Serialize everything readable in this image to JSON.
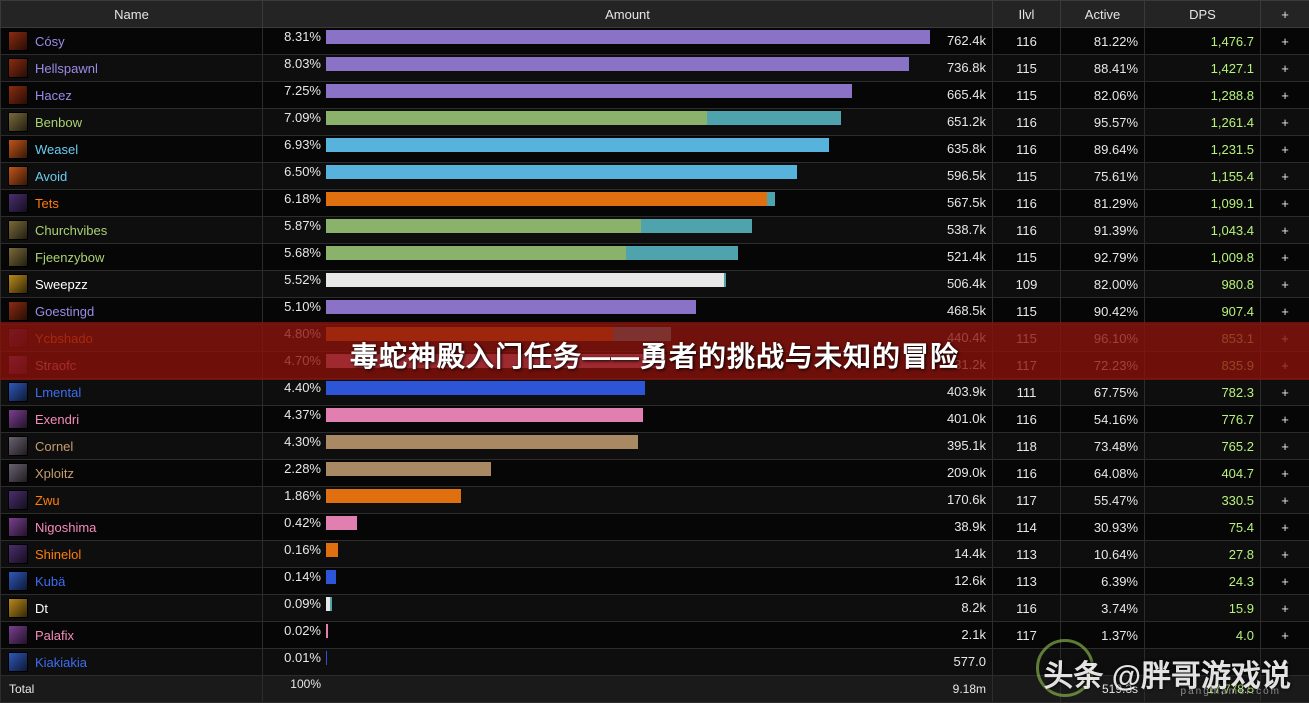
{
  "columns": {
    "name": "Name",
    "amount": "Amount",
    "ilvl": "Ilvl",
    "active": "Active",
    "dps": "DPS",
    "plus": "+"
  },
  "rows": [
    {
      "name": "Cósy",
      "color": "#9d8ae8",
      "icon": "warlock-icon",
      "pct": "8.31%",
      "amount": "762.4k",
      "ilvl": "116",
      "active": "81.22%",
      "dps": "1,476.7",
      "bars": [
        {
          "w": 99,
          "c": "#8a72c6"
        }
      ],
      "plus": "+"
    },
    {
      "name": "Hellspawnl",
      "color": "#9d8ae8",
      "icon": "warlock-icon",
      "pct": "8.03%",
      "amount": "736.8k",
      "ilvl": "115",
      "active": "88.41%",
      "dps": "1,427.1",
      "bars": [
        {
          "w": 95.6,
          "c": "#8a72c6"
        }
      ],
      "plus": "+"
    },
    {
      "name": "Hacez",
      "color": "#9d8ae8",
      "icon": "warlock-icon",
      "pct": "7.25%",
      "amount": "665.4k",
      "ilvl": "115",
      "active": "82.06%",
      "dps": "1,288.8",
      "bars": [
        {
          "w": 86.2,
          "c": "#8a72c6"
        }
      ],
      "plus": "+"
    },
    {
      "name": "Benbow",
      "color": "#a9d271",
      "icon": "hunter-icon",
      "pct": "7.09%",
      "amount": "651.2k",
      "ilvl": "116",
      "active": "95.57%",
      "dps": "1,261.4",
      "bars": [
        {
          "w": 62.5,
          "c": "#8bb26b"
        },
        {
          "w": 22,
          "c": "#4fa3ad"
        }
      ],
      "plus": "+"
    },
    {
      "name": "Weasel",
      "color": "#69ccf0",
      "icon": "mage-icon",
      "pct": "6.93%",
      "amount": "635.8k",
      "ilvl": "116",
      "active": "89.64%",
      "dps": "1,231.5",
      "bars": [
        {
          "w": 82.5,
          "c": "#58b3dc"
        }
      ],
      "plus": "+"
    },
    {
      "name": "Avoid",
      "color": "#69ccf0",
      "icon": "mage-icon",
      "pct": "6.50%",
      "amount": "596.5k",
      "ilvl": "115",
      "active": "75.61%",
      "dps": "1,155.4",
      "bars": [
        {
          "w": 77.2,
          "c": "#58b3dc"
        }
      ],
      "plus": "+"
    },
    {
      "name": "Tets",
      "color": "#ff7d0a",
      "icon": "druid-icon",
      "pct": "6.18%",
      "amount": "567.5k",
      "ilvl": "116",
      "active": "81.29%",
      "dps": "1,099.1",
      "bars": [
        {
          "w": 72.3,
          "c": "#e0700f"
        },
        {
          "w": 1.3,
          "c": "#4fa3ad"
        }
      ],
      "plus": "+"
    },
    {
      "name": "Churchvibes",
      "color": "#a9d271",
      "icon": "hunter-icon",
      "pct": "5.87%",
      "amount": "538.7k",
      "ilvl": "116",
      "active": "91.39%",
      "dps": "1,043.4",
      "bars": [
        {
          "w": 51.6,
          "c": "#8bb26b"
        },
        {
          "w": 18.2,
          "c": "#4fa3ad"
        }
      ],
      "plus": "+"
    },
    {
      "name": "Fjeenzybow",
      "color": "#a9d271",
      "icon": "hunter-icon",
      "pct": "5.68%",
      "amount": "521.4k",
      "ilvl": "115",
      "active": "92.79%",
      "dps": "1,009.8",
      "bars": [
        {
          "w": 49.2,
          "c": "#8bb26b"
        },
        {
          "w": 18.3,
          "c": "#4fa3ad"
        }
      ],
      "plus": "+"
    },
    {
      "name": "Sweepzz",
      "color": "#ffffff",
      "icon": "priest-icon",
      "pct": "5.52%",
      "amount": "506.4k",
      "ilvl": "109",
      "active": "82.00%",
      "dps": "980.8",
      "bars": [
        {
          "w": 65.2,
          "c": "#e8e8e8"
        },
        {
          "w": 0.4,
          "c": "#4fa3ad"
        }
      ],
      "plus": "+"
    },
    {
      "name": "Goestingd",
      "color": "#9d8ae8",
      "icon": "warlock-icon",
      "pct": "5.10%",
      "amount": "468.5k",
      "ilvl": "115",
      "active": "90.42%",
      "dps": "907.4",
      "bars": [
        {
          "w": 60.7,
          "c": "#8a72c6"
        }
      ],
      "plus": "+"
    },
    {
      "name": "Ycbshado",
      "color": "#ff7d0a",
      "icon": "druid-icon",
      "pct": "4.80%",
      "amount": "440.4k",
      "ilvl": "115",
      "active": "96.10%",
      "dps": "853.1",
      "bars": [
        {
          "w": 47,
          "c": "#e0700f"
        },
        {
          "w": 9.6,
          "c": "#4fa3ad"
        }
      ],
      "plus": "+"
    },
    {
      "name": "Straofc",
      "color": "#f58cba",
      "icon": "paladin-icon",
      "pct": "4.70%",
      "amount": "431.2k",
      "ilvl": "117",
      "active": "72.23%",
      "dps": "835.9",
      "bars": [
        {
          "w": 55.7,
          "c": "#e07fb0"
        }
      ],
      "plus": "+"
    },
    {
      "name": "Lmental",
      "color": "#3d6ef2",
      "icon": "shaman-icon",
      "pct": "4.40%",
      "amount": "403.9k",
      "ilvl": "111",
      "active": "67.75%",
      "dps": "782.3",
      "bars": [
        {
          "w": 52.3,
          "c": "#2d55d8"
        }
      ],
      "plus": "+"
    },
    {
      "name": "Exendri",
      "color": "#f58cba",
      "icon": "paladin-icon",
      "pct": "4.37%",
      "amount": "401.0k",
      "ilvl": "116",
      "active": "54.16%",
      "dps": "776.7",
      "bars": [
        {
          "w": 52,
          "c": "#e07fb0"
        }
      ],
      "plus": "+"
    },
    {
      "name": "Cornel",
      "color": "#c79c6e",
      "icon": "warrior-icon",
      "pct": "4.30%",
      "amount": "395.1k",
      "ilvl": "118",
      "active": "73.48%",
      "dps": "765.2",
      "bars": [
        {
          "w": 51.2,
          "c": "#a98963"
        }
      ],
      "plus": "+"
    },
    {
      "name": "Xploitz",
      "color": "#c79c6e",
      "icon": "warrior-icon",
      "pct": "2.28%",
      "amount": "209.0k",
      "ilvl": "116",
      "active": "64.08%",
      "dps": "404.7",
      "bars": [
        {
          "w": 27.1,
          "c": "#a98963"
        }
      ],
      "plus": "+"
    },
    {
      "name": "Zwu",
      "color": "#ff7d0a",
      "icon": "druid-icon",
      "pct": "1.86%",
      "amount": "170.6k",
      "ilvl": "117",
      "active": "55.47%",
      "dps": "330.5",
      "bars": [
        {
          "w": 22.1,
          "c": "#e0700f"
        }
      ],
      "plus": "+"
    },
    {
      "name": "Nigoshima",
      "color": "#f58cba",
      "icon": "paladin-icon",
      "pct": "0.42%",
      "amount": "38.9k",
      "ilvl": "114",
      "active": "30.93%",
      "dps": "75.4",
      "bars": [
        {
          "w": 5,
          "c": "#e07fb0"
        }
      ],
      "plus": "+"
    },
    {
      "name": "Shinelol",
      "color": "#ff7d0a",
      "icon": "druid-icon",
      "pct": "0.16%",
      "amount": "14.4k",
      "ilvl": "113",
      "active": "10.64%",
      "dps": "27.8",
      "bars": [
        {
          "w": 1.9,
          "c": "#e0700f"
        }
      ],
      "plus": "+"
    },
    {
      "name": "Kubä",
      "color": "#3d6ef2",
      "icon": "shaman-icon",
      "pct": "0.14%",
      "amount": "12.6k",
      "ilvl": "113",
      "active": "6.39%",
      "dps": "24.3",
      "bars": [
        {
          "w": 1.6,
          "c": "#2d55d8"
        }
      ],
      "plus": "+"
    },
    {
      "name": "Dt",
      "color": "#ffffff",
      "icon": "priest-icon",
      "pct": "0.09%",
      "amount": "8.2k",
      "ilvl": "116",
      "active": "3.74%",
      "dps": "15.9",
      "bars": [
        {
          "w": 0.6,
          "c": "#e8e8e8"
        },
        {
          "w": 0.4,
          "c": "#4fa3ad"
        }
      ],
      "plus": "+"
    },
    {
      "name": "Palafix",
      "color": "#f58cba",
      "icon": "paladin-icon",
      "pct": "0.02%",
      "amount": "2.1k",
      "ilvl": "117",
      "active": "1.37%",
      "dps": "4.0",
      "bars": [
        {
          "w": 0.3,
          "c": "#e07fb0"
        }
      ],
      "plus": "+"
    },
    {
      "name": "Kiakiakia",
      "color": "#3d6ef2",
      "icon": "shaman-icon",
      "pct": "0.01%",
      "amount": "577.0",
      "ilvl": "",
      "active": "",
      "dps": "",
      "bars": [
        {
          "w": 0.2,
          "c": "#2d55d8"
        }
      ],
      "plus": "+"
    }
  ],
  "total": {
    "label": "Total",
    "pct": "100%",
    "amount": "9.18m",
    "ilvl": "",
    "active": "519.3s",
    "dps": "17,778.5"
  },
  "icon_colors": {
    "warlock-icon": "#8a2c12",
    "hunter-icon": "#7a6a3a",
    "mage-icon": "#c0541a",
    "druid-icon": "#4a2f6e",
    "priest-icon": "#b88a1c",
    "paladin-icon": "#7a3f8f",
    "shaman-icon": "#2e58b8",
    "warrior-icon": "#6a6270"
  },
  "banner": {
    "title": "毒蛇神殿入门任务——勇者的挑战与未知的冒险"
  },
  "watermark": {
    "text": "头条 @胖哥游戏说",
    "sub": "pangmamer.com"
  }
}
